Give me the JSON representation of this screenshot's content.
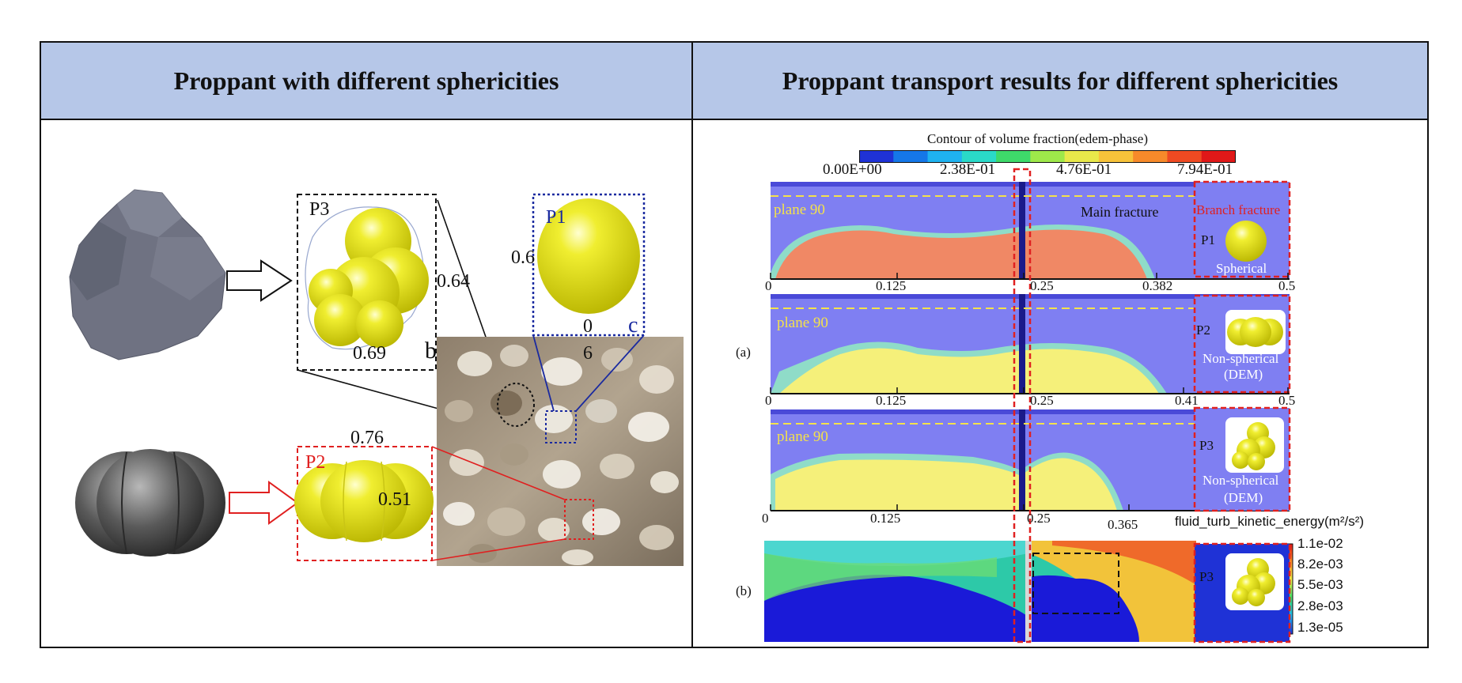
{
  "header": {
    "left_title": "Proppant with different sphericities",
    "right_title": "Proppant transport results for different sphericities"
  },
  "left_panel": {
    "p3_label": "P3",
    "p3_value_right": "0.64",
    "p3_value_bottom": "0.69",
    "p1_label": "P1",
    "p1_value_left": "0.6",
    "p1_value_bottom_1": "0",
    "p1_value_bottom_2": "6",
    "label_b": "b",
    "label_c": "c",
    "p2_label": "P2",
    "p2_value_top": "0.76",
    "p2_value_right": "0.51"
  },
  "right_panel": {
    "colorbar_title": "Contour of volume fraction(edem-phase)",
    "colorbar_ticks": [
      "0.00E+00",
      "2.38E-01",
      "4.76E-01",
      "7.94E-01"
    ],
    "colorbar_colors": [
      "#1f32d6",
      "#1577e8",
      "#1fb2f0",
      "#2ad9c8",
      "#3ed96a",
      "#9ee84a",
      "#e8e84a",
      "#f7c23a",
      "#f78a2a",
      "#ef4a22",
      "#e01818"
    ],
    "plane_label": "plane 90",
    "main_fracture": "Main fracture",
    "branch_fracture": "Branch fracture",
    "label_a": "(a)",
    "label_b": "(b)",
    "panels": [
      {
        "proppant": "P1",
        "caption_1": "Spherical",
        "caption_2": "",
        "ticks": [
          "0",
          "0.125",
          "0.25",
          "0.382",
          "0.5"
        ]
      },
      {
        "proppant": "P2",
        "caption_1": "Non-spherical",
        "caption_2": "(DEM)",
        "ticks": [
          "0",
          "0.125",
          "0.25",
          "0.41",
          "0.5"
        ]
      },
      {
        "proppant": "P3",
        "caption_1": "Non-spherical",
        "caption_2": "(DEM)",
        "ticks": [
          "0",
          "0.125",
          "0.25",
          "0.365"
        ]
      }
    ],
    "turb_title": "fluid_turb_kinetic_energy(m²/s²)",
    "turb_ticks": [
      "1.1e-02",
      "8.2e-03",
      "5.5e-03",
      "2.8e-03",
      "1.3e-05"
    ],
    "turb_proppant": "P3"
  }
}
